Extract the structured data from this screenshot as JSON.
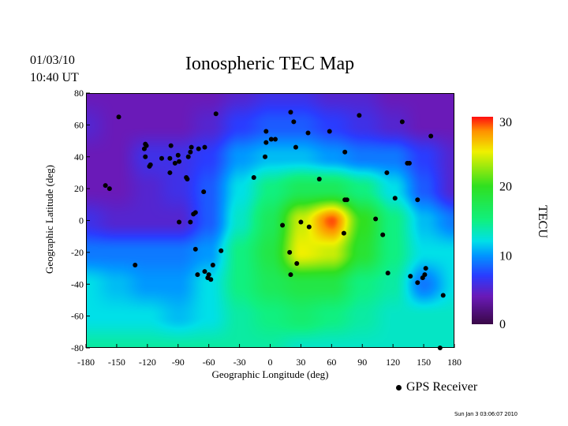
{
  "header": {
    "date": "01/03/10",
    "time": "10:40 UT",
    "title": "Ionospheric TEC Map"
  },
  "footer": {
    "legend_label": "GPS Receiver",
    "timestamp": "Sun Jan  3 03:06:07 2010"
  },
  "chart_data": {
    "type": "heatmap",
    "title": "Ionospheric TEC Map",
    "xlabel": "Geographic Longitude (deg)",
    "ylabel": "Geographic Latitude (deg)",
    "xlim": [
      -180,
      180
    ],
    "ylim": [
      -80,
      80
    ],
    "xticks": [
      -180,
      -150,
      -120,
      -90,
      -60,
      -30,
      0,
      30,
      60,
      90,
      120,
      150,
      180
    ],
    "yticks": [
      80,
      60,
      40,
      20,
      0,
      -20,
      -40,
      -60,
      -80
    ],
    "colorbar": {
      "label": "TECU",
      "range": [
        0,
        30
      ],
      "ticks": [
        0,
        10,
        20,
        30
      ]
    },
    "grid_lons": [
      -180,
      -150,
      -120,
      -90,
      -60,
      -30,
      0,
      30,
      60,
      90,
      120,
      150,
      180
    ],
    "grid_lats": [
      80,
      60,
      40,
      20,
      0,
      -20,
      -40,
      -60,
      -80
    ],
    "tec": [
      [
        4,
        4,
        4,
        4,
        4,
        5,
        6,
        6,
        5,
        5,
        4,
        4,
        4
      ],
      [
        5,
        4,
        4,
        4,
        5,
        7,
        8,
        8,
        7,
        6,
        5,
        4,
        4
      ],
      [
        4,
        4,
        6,
        6,
        7,
        10,
        11,
        11,
        10,
        9,
        9,
        7,
        5
      ],
      [
        4,
        4,
        5,
        6,
        8,
        12,
        15,
        17,
        17,
        15,
        12,
        8,
        5
      ],
      [
        6,
        5,
        5,
        5,
        8,
        13,
        17,
        24,
        29,
        20,
        15,
        11,
        9
      ],
      [
        9,
        9,
        9,
        9,
        10,
        15,
        18,
        25,
        24,
        19,
        15,
        12,
        12
      ],
      [
        12,
        11,
        10,
        10,
        12,
        15,
        17,
        18,
        18,
        15,
        14,
        9,
        12
      ],
      [
        12,
        12,
        12,
        11,
        12,
        14,
        15,
        16,
        15,
        14,
        13,
        13,
        13
      ],
      [
        14,
        14,
        14,
        14,
        14,
        14,
        14,
        13,
        13,
        13,
        13,
        13,
        13
      ]
    ],
    "colormap": [
      [
        0,
        "#3a0848"
      ],
      [
        4,
        "#6a1ab8"
      ],
      [
        7,
        "#2a3cff"
      ],
      [
        10,
        "#0098ff"
      ],
      [
        12,
        "#00e0e8"
      ],
      [
        15,
        "#10f080"
      ],
      [
        20,
        "#30e020"
      ],
      [
        25,
        "#f0f000"
      ],
      [
        28,
        "#ff9000"
      ],
      [
        30,
        "#ff1010"
      ]
    ],
    "legend": "bottom-right",
    "receivers": [
      [
        -148,
        65
      ],
      [
        -122,
        48
      ],
      [
        -123,
        45
      ],
      [
        -121,
        47
      ],
      [
        -122,
        40
      ],
      [
        -118,
        34
      ],
      [
        -117,
        35
      ],
      [
        -106,
        39
      ],
      [
        -97,
        47
      ],
      [
        -98,
        39
      ],
      [
        -98,
        30
      ],
      [
        -90,
        41
      ],
      [
        -89,
        37
      ],
      [
        -93,
        36
      ],
      [
        -80,
        40
      ],
      [
        -77,
        46
      ],
      [
        -78,
        43
      ],
      [
        -70,
        45
      ],
      [
        -64,
        46
      ],
      [
        -53,
        67
      ],
      [
        -82,
        27
      ],
      [
        -81,
        26
      ],
      [
        -65,
        18
      ],
      [
        -161,
        22
      ],
      [
        -157,
        20
      ],
      [
        -89,
        -1
      ],
      [
        -78,
        -1
      ],
      [
        -75,
        4
      ],
      [
        -73,
        5
      ],
      [
        -73,
        -18
      ],
      [
        -71,
        -34
      ],
      [
        -64,
        -32
      ],
      [
        -60,
        -34
      ],
      [
        -56,
        -28
      ],
      [
        -61,
        -36
      ],
      [
        -58,
        -37
      ],
      [
        -48,
        -19
      ],
      [
        -132,
        -28
      ],
      [
        -16,
        27
      ],
      [
        -5,
        40
      ],
      [
        -4,
        49
      ],
      [
        -4,
        56
      ],
      [
        1,
        51
      ],
      [
        5,
        51
      ],
      [
        20,
        68
      ],
      [
        23,
        62
      ],
      [
        25,
        46
      ],
      [
        37,
        55
      ],
      [
        58,
        56
      ],
      [
        87,
        66
      ],
      [
        129,
        62
      ],
      [
        157,
        53
      ],
      [
        73,
        43
      ],
      [
        48,
        26
      ],
      [
        75,
        13
      ],
      [
        73,
        13
      ],
      [
        103,
        1
      ],
      [
        110,
        -9
      ],
      [
        114,
        30
      ],
      [
        122,
        14
      ],
      [
        134,
        36
      ],
      [
        136,
        36
      ],
      [
        144,
        13
      ],
      [
        72,
        -8
      ],
      [
        38,
        -4
      ],
      [
        30,
        -1
      ],
      [
        12,
        -3
      ],
      [
        19,
        -20
      ],
      [
        26,
        -27
      ],
      [
        20,
        -34
      ],
      [
        115,
        -33
      ],
      [
        137,
        -35
      ],
      [
        144,
        -39
      ],
      [
        149,
        -36
      ],
      [
        151,
        -34
      ],
      [
        152,
        -30
      ],
      [
        169,
        -47
      ],
      [
        166,
        -80
      ]
    ]
  }
}
